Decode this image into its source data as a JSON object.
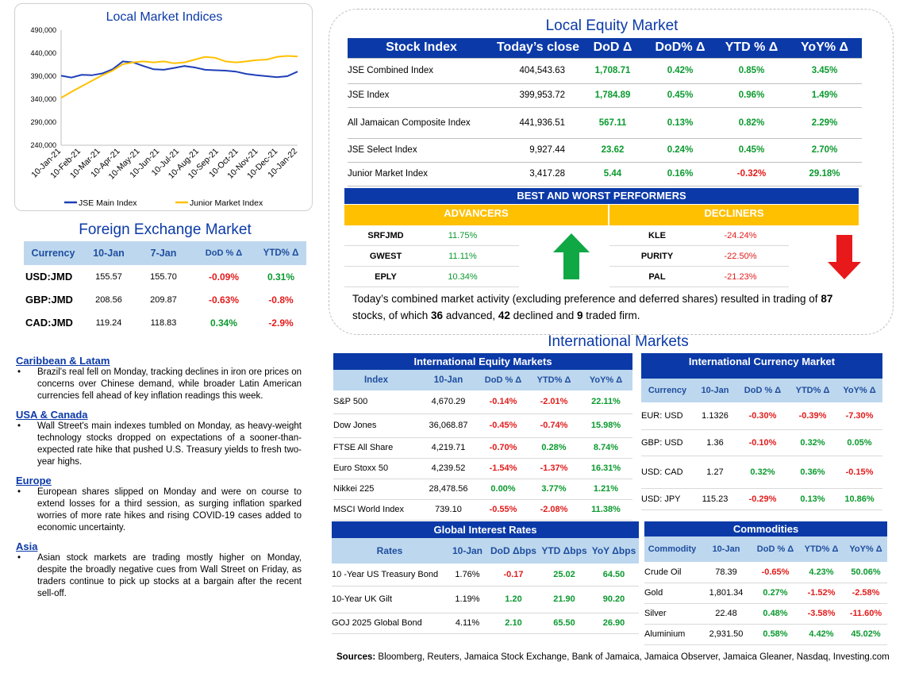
{
  "chart_data": {
    "type": "line",
    "title": "Local Market Indices",
    "x_ticks": [
      "10-Jan-21",
      "10-Feb-21",
      "10-Mar-21",
      "10-Apr-21",
      "10-May-21",
      "10-Jun-21",
      "10-Jul-21",
      "10-Aug-21",
      "10-Sep-21",
      "10-Oct-21",
      "10-Nov-21",
      "10-Dec-21",
      "10-Jan-22"
    ],
    "y_ticks": [
      "490,000",
      "440,000",
      "390,000",
      "340,000",
      "290,000",
      "240,000"
    ],
    "ylim": [
      240000,
      490000
    ],
    "series": [
      {
        "name": "JSE Main Index",
        "color": "#1f3fb8",
        "values": [
          391000,
          387000,
          393000,
          392000,
          396000,
          405000,
          422000,
          420000,
          412000,
          405000,
          404000,
          408000,
          412000,
          409000,
          404000,
          403000,
          402000,
          400000,
          395000,
          392000,
          390000,
          388000,
          390000,
          400000
        ]
      },
      {
        "name": "Junior Market Index",
        "color": "#ffc000",
        "values": [
          343000,
          356000,
          368000,
          380000,
          392000,
          402000,
          416000,
          420000,
          422000,
          420000,
          422000,
          418000,
          420000,
          426000,
          432000,
          430000,
          422000,
          420000,
          422000,
          425000,
          426000,
          432000,
          434000,
          433000
        ]
      }
    ]
  },
  "equity": {
    "title": "Local Equity Market",
    "headers": [
      "Stock Index",
      "Today’s close",
      "DoD  Δ",
      "DoD% Δ",
      "YTD % Δ",
      "YoY% Δ"
    ],
    "rows": [
      [
        "JSE Combined Index",
        "404,543.63",
        "1,708.71",
        "0.42%",
        "0.85%",
        "3.45%"
      ],
      [
        "JSE Index",
        "399,953.72",
        "1,784.89",
        "0.45%",
        "0.96%",
        "1.49%"
      ],
      [
        "All Jamaican Composite Index",
        "441,936.51",
        "567.11",
        "0.13%",
        "0.82%",
        "2.29%"
      ],
      [
        "JSE Select Index",
        "9,927.44",
        "23.62",
        "0.24%",
        "0.45%",
        "2.70%"
      ],
      [
        "Junior Market Index",
        "3,417.28",
        "5.44",
        "0.16%",
        "-0.32%",
        "29.18%"
      ]
    ]
  },
  "performers": {
    "title": "BEST AND WORST PERFORMERS",
    "advancers_label": "ADVANCERS",
    "decliners_label": "DECLINERS",
    "advancers": [
      [
        "SRFJMD",
        "11.75%"
      ],
      [
        "GWEST",
        "11.11%"
      ],
      [
        "EPLY",
        "10.34%"
      ]
    ],
    "decliners": [
      [
        "KLE",
        "-24.24%"
      ],
      [
        "PURITY",
        "-22.50%"
      ],
      [
        "PAL",
        "-21.23%"
      ]
    ]
  },
  "summary": {
    "part1": "Today’s combined market activity (excluding preference and deferred shares) resulted in trading of ",
    "total": "87",
    "part2": " stocks, of which ",
    "advanced": "36",
    "part3": " advanced, ",
    "declined": "42",
    "part4": " declined and ",
    "firm": "9",
    "part5": " traded firm."
  },
  "fx": {
    "title": "Foreign Exchange Market",
    "headers": [
      "Currency",
      "10-Jan",
      "7-Jan",
      "DoD % Δ",
      "YTD% Δ"
    ],
    "rows": [
      [
        "USD:JMD",
        "155.57",
        "155.70",
        "-0.09%",
        "0.31%"
      ],
      [
        "GBP:JMD",
        "208.56",
        "209.87",
        "-0.63%",
        "-0.8%"
      ],
      [
        "CAD:JMD",
        "119.24",
        "118.83",
        "0.34%",
        "-2.9%"
      ]
    ]
  },
  "news": [
    {
      "head": "Caribbean & Latam",
      "body": "Brazil's real fell on Monday, tracking declines in iron ore prices on concerns over Chinese demand, while broader Latin American currencies fell ahead of key inflation readings this week."
    },
    {
      "head": "USA & Canada",
      "body": "Wall Street's main indexes tumbled on Monday, as heavy-weight technology stocks dropped on expectations of a sooner-than-expected rate hike that pushed U.S. Treasury yields to fresh two-year highs."
    },
    {
      "head": "Europe",
      "body": "European shares slipped on Monday and were on course to extend losses for a third session, as surging inflation sparked worries of more rate hikes and rising COVID-19 cases added to economic uncertainty."
    },
    {
      "head": "Asia",
      "body": "Asian stock markets are trading mostly higher on Monday, despite the broadly negative cues from Wall Street on Friday, as traders continue to pick up stocks at a bargain after the recent sell-off."
    }
  ],
  "intl": {
    "title": "International Markets",
    "equity": {
      "title": "International Equity Markets",
      "headers": [
        "Index",
        "10-Jan",
        "DoD % Δ",
        "YTD% Δ",
        "YoY% Δ"
      ],
      "rows": [
        [
          "S&P 500",
          "4,670.29",
          "-0.14%",
          "-2.01%",
          "22.11%"
        ],
        [
          "Dow Jones",
          "36,068.87",
          "-0.45%",
          "-0.74%",
          "15.98%"
        ],
        [
          "FTSE All Share",
          "4,219.71",
          "-0.70%",
          "0.28%",
          "8.74%"
        ],
        [
          "Euro Stoxx 50",
          "4,239.52",
          "-1.54%",
          "-1.37%",
          "16.31%"
        ],
        [
          "Nikkei 225",
          "28,478.56",
          "0.00%",
          "3.77%",
          "1.21%"
        ],
        [
          "MSCI World Index",
          "739.10",
          "-0.55%",
          "-2.08%",
          "11.38%"
        ]
      ]
    },
    "currency": {
      "title": "International Currency Market",
      "headers": [
        "Currency",
        "10-Jan",
        "DoD % Δ",
        "YTD% Δ",
        "YoY% Δ"
      ],
      "rows": [
        [
          "EUR: USD",
          "1.1326",
          "-0.30%",
          "-0.39%",
          "-7.30%"
        ],
        [
          "GBP: USD",
          "1.36",
          "-0.10%",
          "0.32%",
          "0.05%"
        ],
        [
          "USD: CAD",
          "1.27",
          "0.32%",
          "0.36%",
          "-0.15%"
        ],
        [
          "USD: JPY",
          "115.23",
          "-0.29%",
          "0.13%",
          "10.86%"
        ]
      ]
    },
    "rates": {
      "title": "Global Interest Rates",
      "headers": [
        "Rates",
        "10-Jan",
        "DoD Δbps",
        "YTD Δbps",
        "YoY Δbps"
      ],
      "rows": [
        [
          "10 -Year US Treasury Bond",
          "1.76%",
          "-0.17",
          "25.02",
          "64.50"
        ],
        [
          "10-Year UK Gilt",
          "1.19%",
          "1.20",
          "21.90",
          "90.20"
        ],
        [
          "GOJ 2025 Global Bond",
          "4.11%",
          "2.10",
          "65.50",
          "26.90"
        ]
      ]
    },
    "commodities": {
      "title": "Commodities",
      "headers": [
        "Commodity",
        "10-Jan",
        "DoD % Δ",
        "YTD% Δ",
        "YoY% Δ"
      ],
      "rows": [
        [
          "Crude Oil",
          "78.39",
          "-0.65%",
          "4.23%",
          "50.06%"
        ],
        [
          "Gold",
          "1,801.34",
          "0.27%",
          "-1.52%",
          "-2.58%"
        ],
        [
          "Silver",
          "22.48",
          "0.48%",
          "-3.58%",
          "-11.60%"
        ],
        [
          "Aluminium",
          "2,931.50",
          "0.58%",
          "4.42%",
          "45.02%"
        ]
      ]
    }
  },
  "sources": {
    "label": "Sources:",
    "text": " Bloomberg, Reuters, Jamaica Stock Exchange, Bank of Jamaica, Jamaica Observer, Jamaica Gleaner, Nasdaq, Investing.com"
  }
}
